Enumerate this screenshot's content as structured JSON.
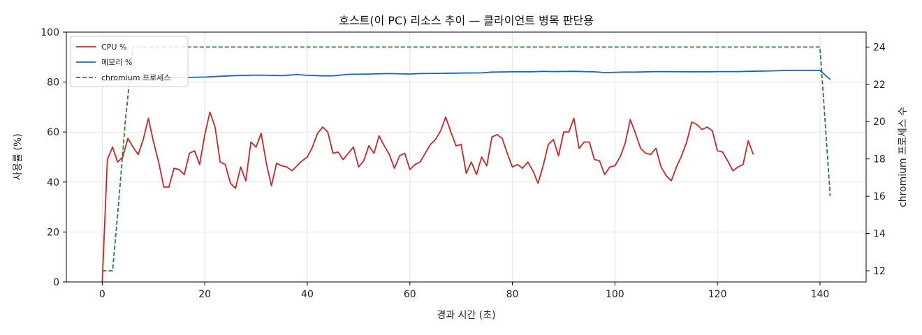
{
  "chart_data": {
    "type": "line",
    "title": "호스트(이 PC) 리소스 추이 — 클라이언트 병목 판단용",
    "xlabel": "경과 시간 (초)",
    "ylabel": "사용률 (%)",
    "y2label": "chromium 프로세스 수",
    "xlim": [
      -7,
      149
    ],
    "ylim": [
      0,
      100
    ],
    "y2lim": [
      11.4,
      24.8
    ],
    "xticks": [
      0,
      20,
      40,
      60,
      80,
      100,
      120,
      140
    ],
    "yticks": [
      0,
      20,
      40,
      60,
      80,
      100
    ],
    "y2ticks": [
      12,
      14,
      16,
      18,
      20,
      22,
      24
    ],
    "grid": true,
    "legend_position": "top-left",
    "series": [
      {
        "name": "CPU %",
        "axis": "left",
        "color": "#c62828",
        "style": "solid",
        "points": [
          [
            0,
            0
          ],
          [
            1,
            49
          ],
          [
            2,
            54
          ],
          [
            3,
            48
          ],
          [
            4,
            50
          ],
          [
            5,
            57.5
          ],
          [
            6,
            54
          ],
          [
            7,
            51
          ],
          [
            8,
            57
          ],
          [
            9,
            65.5
          ],
          [
            10,
            56
          ],
          [
            11,
            48
          ],
          [
            12,
            38
          ],
          [
            13,
            38
          ],
          [
            14,
            45.5
          ],
          [
            15,
            45
          ],
          [
            16,
            43
          ],
          [
            17,
            51.5
          ],
          [
            18,
            52.5
          ],
          [
            19,
            47
          ],
          [
            20,
            59
          ],
          [
            21,
            68
          ],
          [
            22,
            62
          ],
          [
            23,
            48
          ],
          [
            24,
            47
          ],
          [
            25,
            39.5
          ],
          [
            26,
            37.5
          ],
          [
            27,
            46
          ],
          [
            28,
            40.5
          ],
          [
            29,
            56
          ],
          [
            30,
            54
          ],
          [
            31,
            59.5
          ],
          [
            32,
            47.5
          ],
          [
            33,
            38.5
          ],
          [
            34,
            47.5
          ],
          [
            35,
            46.5
          ],
          [
            36,
            46
          ],
          [
            37,
            44.5
          ],
          [
            38,
            46.5
          ],
          [
            39,
            48.5
          ],
          [
            40,
            50
          ],
          [
            41,
            54
          ],
          [
            42,
            59.5
          ],
          [
            43,
            62
          ],
          [
            44,
            60
          ],
          [
            45,
            51.5
          ],
          [
            46,
            52
          ],
          [
            47,
            49
          ],
          [
            48,
            51.5
          ],
          [
            49,
            54
          ],
          [
            50,
            46
          ],
          [
            51,
            48.5
          ],
          [
            52,
            54.5
          ],
          [
            53,
            51.5
          ],
          [
            54,
            58.5
          ],
          [
            55,
            54.5
          ],
          [
            56,
            51
          ],
          [
            57,
            45.5
          ],
          [
            58,
            50.5
          ],
          [
            59,
            51.5
          ],
          [
            60,
            45
          ],
          [
            61,
            47
          ],
          [
            62,
            48
          ],
          [
            63,
            51.5
          ],
          [
            64,
            55
          ],
          [
            65,
            57
          ],
          [
            66,
            60.5
          ],
          [
            67,
            66
          ],
          [
            68,
            60
          ],
          [
            69,
            54.5
          ],
          [
            70,
            55
          ],
          [
            71,
            43.5
          ],
          [
            72,
            48
          ],
          [
            73,
            43
          ],
          [
            74,
            50
          ],
          [
            75,
            46.5
          ],
          [
            76,
            58
          ],
          [
            77,
            59
          ],
          [
            78,
            57.5
          ],
          [
            79,
            51.5
          ],
          [
            80,
            46
          ],
          [
            81,
            47
          ],
          [
            82,
            45.5
          ],
          [
            83,
            48
          ],
          [
            84,
            44.5
          ],
          [
            85,
            39.5
          ],
          [
            86,
            46.5
          ],
          [
            87,
            55
          ],
          [
            88,
            57
          ],
          [
            89,
            50.5
          ],
          [
            90,
            60
          ],
          [
            91,
            60
          ],
          [
            92,
            65.5
          ],
          [
            93,
            53.5
          ],
          [
            94,
            56
          ],
          [
            95,
            56
          ],
          [
            96,
            49
          ],
          [
            97,
            48.5
          ],
          [
            98,
            43
          ],
          [
            99,
            46
          ],
          [
            100,
            46.5
          ],
          [
            101,
            50
          ],
          [
            102,
            55.5
          ],
          [
            103,
            65
          ],
          [
            104,
            59.5
          ],
          [
            105,
            53.5
          ],
          [
            106,
            51.5
          ],
          [
            107,
            51
          ],
          [
            108,
            53.5
          ],
          [
            109,
            46
          ],
          [
            110,
            42.5
          ],
          [
            111,
            40.5
          ],
          [
            112,
            46
          ],
          [
            113,
            50.5
          ],
          [
            114,
            56
          ],
          [
            115,
            64
          ],
          [
            116,
            63
          ],
          [
            117,
            61
          ],
          [
            118,
            62
          ],
          [
            119,
            60.5
          ],
          [
            120,
            52.5
          ],
          [
            121,
            52
          ],
          [
            122,
            48.5
          ],
          [
            123,
            44.5
          ],
          [
            124,
            46
          ],
          [
            125,
            47
          ],
          [
            126,
            56.5
          ],
          [
            127,
            51
          ]
        ]
      },
      {
        "name": "메모리 %",
        "axis": "left",
        "color": "#1565c0",
        "style": "solid",
        "points": [
          [
            0,
            80.5
          ],
          [
            10,
            81.5
          ],
          [
            20,
            82
          ],
          [
            22,
            82.2
          ],
          [
            26,
            82.6
          ],
          [
            30,
            82.8
          ],
          [
            35,
            82.6
          ],
          [
            38,
            83
          ],
          [
            40,
            82.7
          ],
          [
            43,
            82.5
          ],
          [
            45,
            82.5
          ],
          [
            48,
            83.1
          ],
          [
            52,
            83.2
          ],
          [
            56,
            83.4
          ],
          [
            60,
            83.2
          ],
          [
            62,
            83.4
          ],
          [
            66,
            83.5
          ],
          [
            70,
            83.6
          ],
          [
            74,
            83.7
          ],
          [
            76,
            84
          ],
          [
            80,
            84.1
          ],
          [
            84,
            84.1
          ],
          [
            86,
            84.3
          ],
          [
            88,
            84.2
          ],
          [
            92,
            84.3
          ],
          [
            94,
            84.2
          ],
          [
            96,
            84.1
          ],
          [
            98,
            83.8
          ],
          [
            100,
            83.9
          ],
          [
            102,
            84
          ],
          [
            104,
            84
          ],
          [
            108,
            84.2
          ],
          [
            110,
            84.2
          ],
          [
            114,
            84.1
          ],
          [
            118,
            84.1
          ],
          [
            120,
            84.2
          ],
          [
            124,
            84.2
          ],
          [
            126,
            84.3
          ],
          [
            129,
            84.4
          ],
          [
            131,
            84.5
          ],
          [
            134,
            84.7
          ],
          [
            137,
            84.7
          ],
          [
            140,
            84.7
          ],
          [
            142,
            81
          ]
        ]
      },
      {
        "name": "chromium 프로세스",
        "axis": "right",
        "color": "#2e7d32",
        "style": "dashed",
        "points": [
          [
            0,
            12
          ],
          [
            2,
            12
          ],
          [
            3,
            15
          ],
          [
            4.5,
            20
          ],
          [
            6,
            24
          ],
          [
            140,
            24
          ],
          [
            141,
            20
          ],
          [
            142,
            16
          ]
        ]
      }
    ]
  }
}
